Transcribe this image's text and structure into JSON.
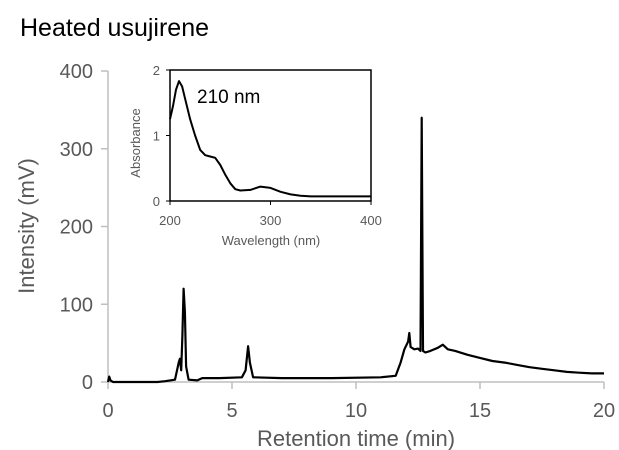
{
  "chart_data": [
    {
      "type": "line",
      "title": "Heated usujirene",
      "xlabel": "Retention time (min)",
      "ylabel": "Intensity (mV)",
      "xlim": [
        0,
        20
      ],
      "ylim": [
        0,
        400
      ],
      "x_ticks": [
        0,
        5,
        10,
        15,
        20
      ],
      "y_ticks": [
        0,
        100,
        200,
        300,
        400
      ],
      "grid": false,
      "legend": "none",
      "series": [
        {
          "color": "#000000",
          "points": [
            [
              0.0,
              0
            ],
            [
              0.05,
              7
            ],
            [
              0.1,
              2
            ],
            [
              0.2,
              0
            ],
            [
              1.0,
              0
            ],
            [
              2.0,
              0
            ],
            [
              2.3,
              1
            ],
            [
              2.7,
              3
            ],
            [
              2.85,
              25
            ],
            [
              2.9,
              30
            ],
            [
              2.95,
              15
            ],
            [
              3.0,
              60
            ],
            [
              3.05,
              120
            ],
            [
              3.1,
              90
            ],
            [
              3.15,
              20
            ],
            [
              3.25,
              3
            ],
            [
              3.6,
              2
            ],
            [
              3.8,
              5
            ],
            [
              4.5,
              5
            ],
            [
              5.4,
              6
            ],
            [
              5.55,
              15
            ],
            [
              5.65,
              46
            ],
            [
              5.72,
              25
            ],
            [
              5.85,
              6
            ],
            [
              7.0,
              5
            ],
            [
              9.0,
              5
            ],
            [
              11.0,
              6
            ],
            [
              11.6,
              8
            ],
            [
              11.8,
              25
            ],
            [
              11.95,
              42
            ],
            [
              12.1,
              52
            ],
            [
              12.15,
              63
            ],
            [
              12.2,
              45
            ],
            [
              12.35,
              42
            ],
            [
              12.5,
              43
            ],
            [
              12.6,
              40
            ],
            [
              12.65,
              340
            ],
            [
              12.7,
              40
            ],
            [
              12.8,
              38
            ],
            [
              13.0,
              40
            ],
            [
              13.3,
              44
            ],
            [
              13.5,
              48
            ],
            [
              13.7,
              42
            ],
            [
              14.0,
              40
            ],
            [
              14.5,
              35
            ],
            [
              15.0,
              31
            ],
            [
              15.5,
              27
            ],
            [
              16.0,
              25
            ],
            [
              16.5,
              22
            ],
            [
              17.0,
              19
            ],
            [
              17.5,
              17
            ],
            [
              18.0,
              15
            ],
            [
              18.5,
              13
            ],
            [
              19.0,
              12
            ],
            [
              19.5,
              11
            ],
            [
              20.0,
              11
            ]
          ]
        }
      ]
    },
    {
      "type": "line",
      "title": "",
      "xlabel": "Wavelength (nm)",
      "ylabel": "Absorbance",
      "xlim": [
        200,
        400
      ],
      "ylim": [
        0,
        2
      ],
      "x_ticks": [
        200,
        300,
        400
      ],
      "y_ticks": [
        0,
        1,
        2
      ],
      "grid": false,
      "legend": "none",
      "annotation": "210 nm",
      "series": [
        {
          "color": "#000000",
          "points": [
            [
              200,
              1.25
            ],
            [
              203,
              1.45
            ],
            [
              206,
              1.7
            ],
            [
              209,
              1.83
            ],
            [
              212,
              1.75
            ],
            [
              216,
              1.5
            ],
            [
              220,
              1.25
            ],
            [
              225,
              1.0
            ],
            [
              230,
              0.78
            ],
            [
              235,
              0.7
            ],
            [
              240,
              0.68
            ],
            [
              245,
              0.66
            ],
            [
              250,
              0.55
            ],
            [
              255,
              0.4
            ],
            [
              260,
              0.27
            ],
            [
              265,
              0.18
            ],
            [
              270,
              0.16
            ],
            [
              280,
              0.17
            ],
            [
              290,
              0.22
            ],
            [
              300,
              0.2
            ],
            [
              310,
              0.14
            ],
            [
              320,
              0.1
            ],
            [
              330,
              0.08
            ],
            [
              340,
              0.07
            ],
            [
              360,
              0.07
            ],
            [
              380,
              0.07
            ],
            [
              400,
              0.07
            ]
          ]
        }
      ]
    }
  ]
}
